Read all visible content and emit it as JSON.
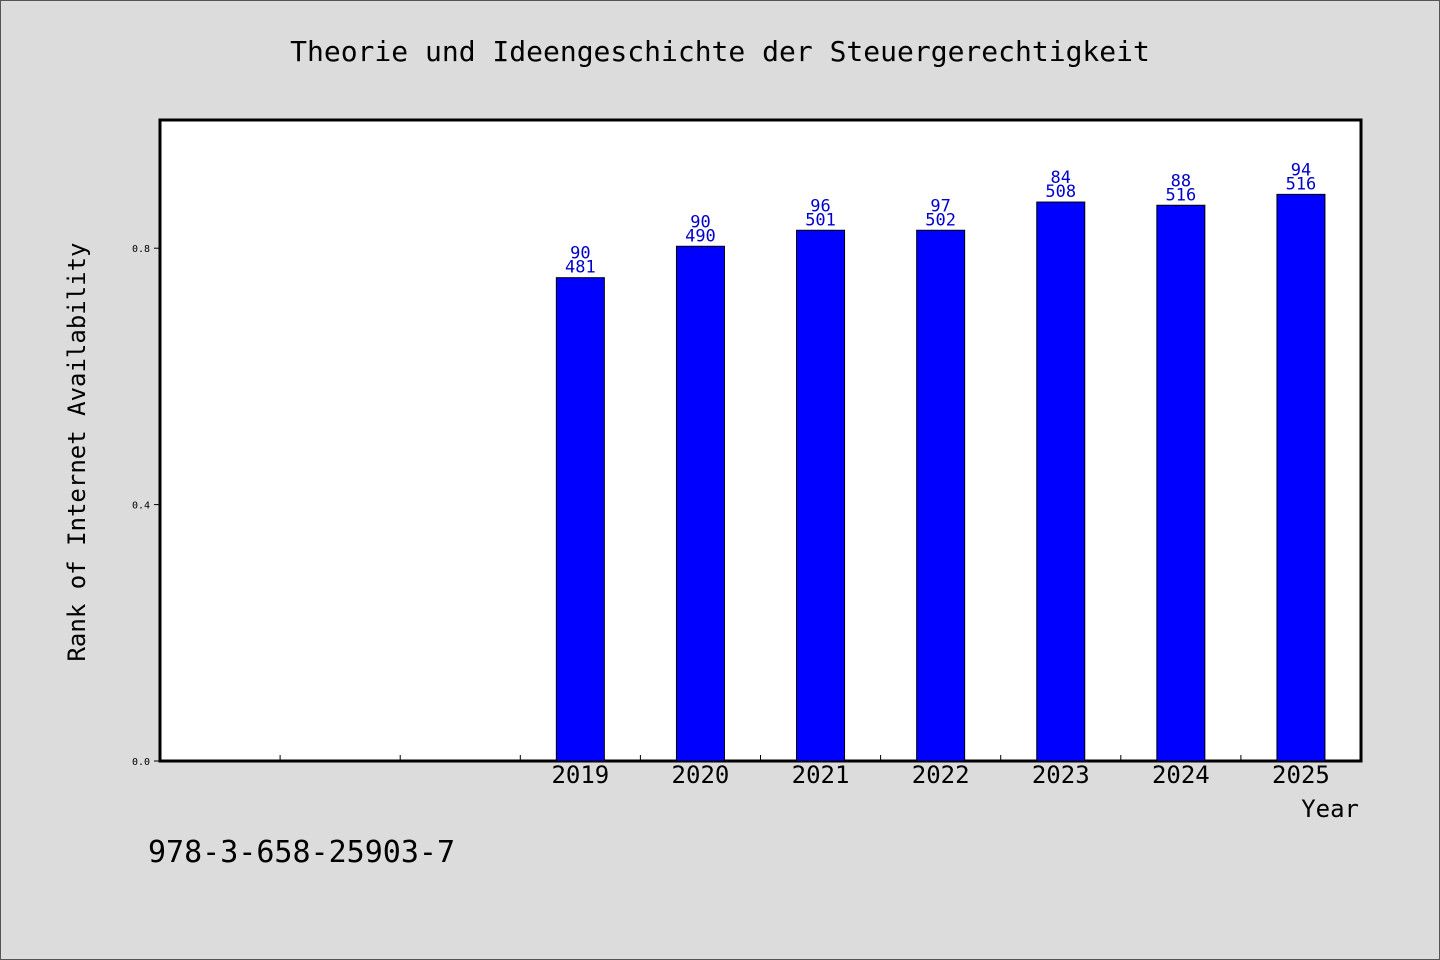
{
  "chart_data": {
    "type": "bar",
    "title": "Theorie und Ideengeschichte der Steuergerechtigkeit",
    "xlabel": "Year",
    "ylabel": "Rank of Internet Availability",
    "categories": [
      "",
      "",
      "",
      "2019",
      "2020",
      "2021",
      "2022",
      "2023",
      "2024",
      "2025"
    ],
    "values": [
      null,
      null,
      null,
      0.754,
      0.803,
      0.828,
      0.828,
      0.872,
      0.867,
      0.884
    ],
    "data_labels_top": [
      "",
      "",
      "",
      "90",
      "90",
      "96",
      "97",
      "84",
      "88",
      "94"
    ],
    "data_labels_bottom": [
      "",
      "",
      "",
      "481",
      "490",
      "501",
      "502",
      "508",
      "516",
      "516"
    ],
    "yticks": [
      0.0,
      0.4,
      0.8
    ],
    "ytick_labels": [
      "0.0",
      "0.4",
      "0.8"
    ],
    "ylim": [
      0,
      1.0
    ],
    "grid": false,
    "colors": {
      "bar": "#0000ff",
      "bar_edge": "#000000",
      "data_label": "#0000cc",
      "background": "#dcdcdc",
      "plot_bg": "#ffffff"
    }
  },
  "footer": {
    "isbn": "978-3-658-25903-7"
  }
}
